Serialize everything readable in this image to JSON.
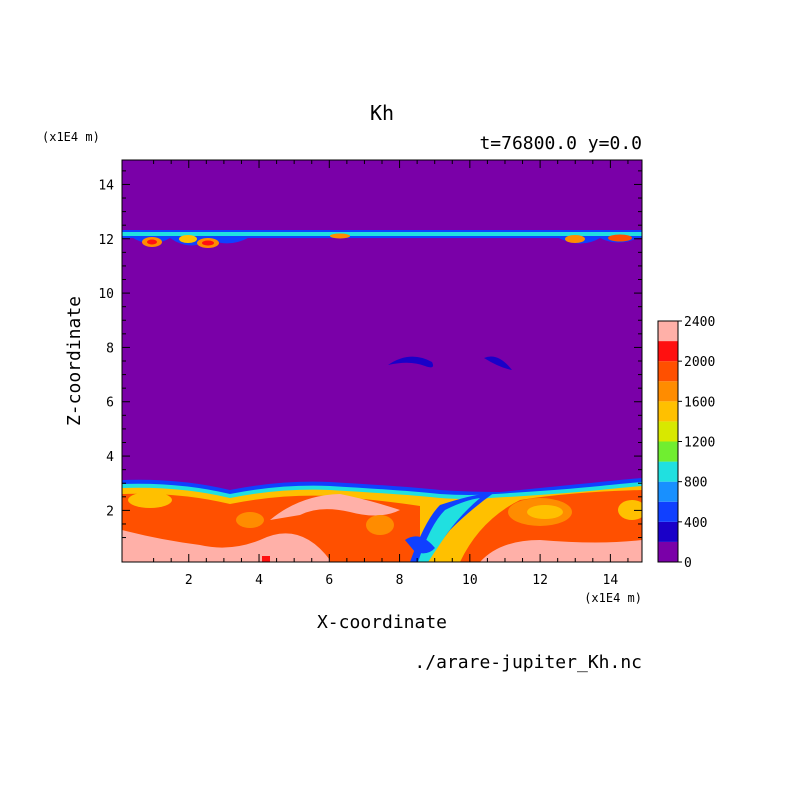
{
  "chart_data": {
    "type": "heatmap",
    "title": "Kh",
    "subtitle": "t=76800.0  y=0.0",
    "xlabel": "X-coordinate",
    "ylabel": "Z-coordinate",
    "x_unit": "(x1E4 m)",
    "y_unit": "(x1E4 m)",
    "xlim": [
      0.1,
      14.9
    ],
    "ylim": [
      0.1,
      14.9
    ],
    "x_ticks": [
      2,
      4,
      6,
      8,
      10,
      12,
      14
    ],
    "y_ticks": [
      2,
      4,
      6,
      8,
      10,
      12,
      14
    ],
    "background_level_color": "#7a00a8",
    "colorbar": {
      "levels": [
        0,
        200,
        400,
        600,
        800,
        1000,
        1200,
        1400,
        1600,
        1800,
        2000,
        2200,
        2400
      ],
      "tick_labels": [
        "0",
        "400",
        "800",
        "1200",
        "1600",
        "2000",
        "2400"
      ],
      "colors": [
        "#7a00a8",
        "#1a00c8",
        "#1040ff",
        "#1890ff",
        "#20e0e0",
        "#70ee30",
        "#d8e800",
        "#ffc000",
        "#ff8c00",
        "#ff5000",
        "#ff1010",
        "#ffb0a8"
      ]
    },
    "footer": "./arare-jupiter_Kh.nc"
  }
}
